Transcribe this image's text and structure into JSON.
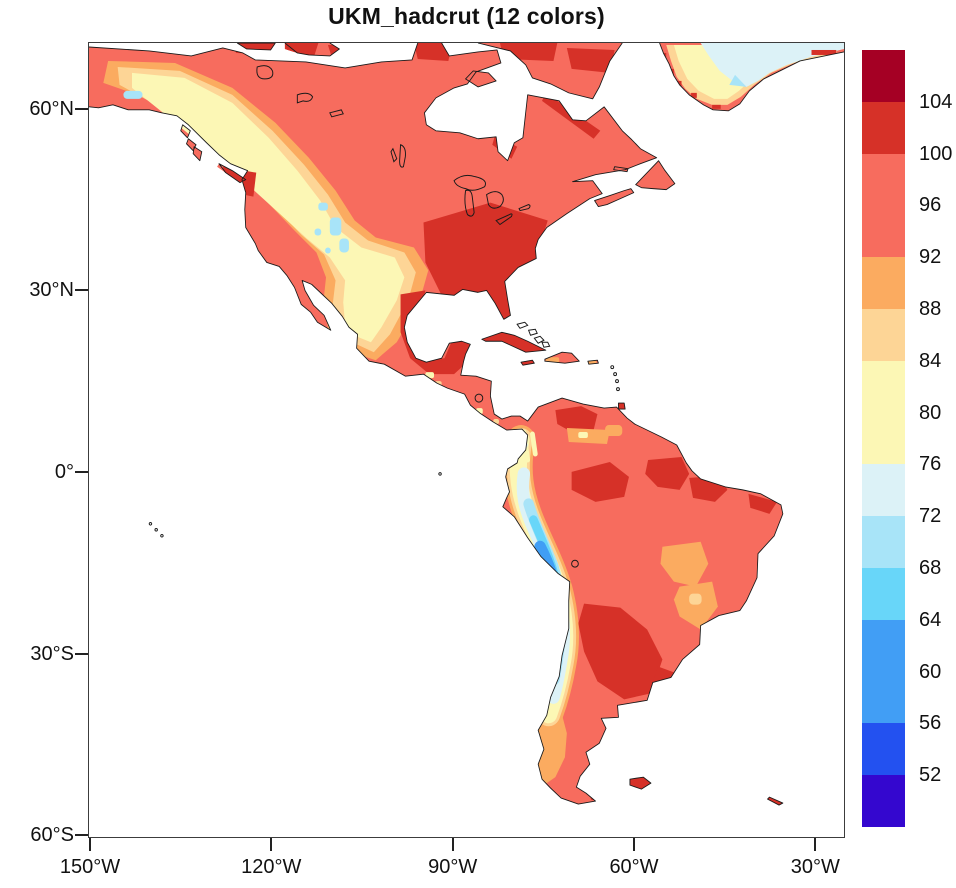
{
  "title": "UKM_hadcrut (12 colors)",
  "axes": {
    "y_labels": [
      "60°N",
      "30°N",
      "0°",
      "30°S",
      "60°S"
    ],
    "x_labels": [
      "150°W",
      "120°W",
      "90°W",
      "60°W",
      "30°W"
    ]
  },
  "palette": {
    "darkred": "#a50024",
    "red": "#d63128",
    "salmon": "#f76c5e",
    "orange": "#fbab60",
    "peach": "#fdd596",
    "yellow": "#fcf7b5",
    "palecyan": "#dcf2f7",
    "lightcyan": "#a8e4f8",
    "cyan": "#68d6f9",
    "blue": "#419ef5",
    "strongblue": "#2351f0",
    "indigo": "#3407cf"
  },
  "colorbar": {
    "distinct_color_count": 12,
    "boundary_labels": [
      "104",
      "100",
      "96",
      "92",
      "88",
      "84",
      "80",
      "76",
      "72",
      "68",
      "64",
      "60",
      "56",
      "52"
    ],
    "segment_colors_top_to_bottom": [
      "darkred",
      "red",
      "salmon",
      "salmon",
      "orange",
      "peach",
      "yellow",
      "yellow",
      "palecyan",
      "lightcyan",
      "cyan",
      "blue",
      "blue",
      "strongblue",
      "indigo"
    ]
  },
  "map": {
    "ocean_color": "#ffffff",
    "coastline_color": "#1a1a1a",
    "dominant_land_color": "salmon"
  },
  "chart_data": {
    "type": "heatmap",
    "title": "UKM_hadcrut (12 colors)",
    "projection": "cylindrical equidistant, Americas",
    "x_axis": {
      "label": "longitude",
      "tick_labels": [
        "150°W",
        "120°W",
        "90°W",
        "60°W",
        "30°W"
      ],
      "range_deg": [
        -150,
        -25
      ]
    },
    "y_axis": {
      "label": "latitude",
      "tick_labels": [
        "60°N",
        "30°N",
        "0°",
        "30°S",
        "60°S"
      ],
      "range_deg": [
        -60.4,
        71
      ]
    },
    "legend_position": "right vertical labelbar",
    "levels_low_to_high": [
      52,
      56,
      60,
      64,
      68,
      72,
      76,
      80,
      84,
      88,
      92,
      96,
      100,
      104
    ],
    "colors_low_to_high_hex": [
      "#3407cf",
      "#2351f0",
      "#419ef5",
      "#419ef5",
      "#68d6f9",
      "#a8e4f8",
      "#dcf2f7",
      "#fcf7b5",
      "#fcf7b5",
      "#fdd596",
      "#fbab60",
      "#f76c5e",
      "#f76c5e",
      "#d63128",
      "#a50024"
    ],
    "notable_features": [
      "Most of North and South America in 92-100 range (salmon)",
      "Southeastern US, Gulf coast of Mexico, Cuba, Amazon core, Pampas in 100-104 (red)",
      "Western US cordillera, Mexican highlands in 76-88 (yellow/orange) with 68-72 specks over Great Basin",
      "Andes strip drops to 56-64 (blue) over Peru/Bolivia/Chile",
      "Greenland interior 72-76 (pale cyan), rim 88-104"
    ]
  }
}
